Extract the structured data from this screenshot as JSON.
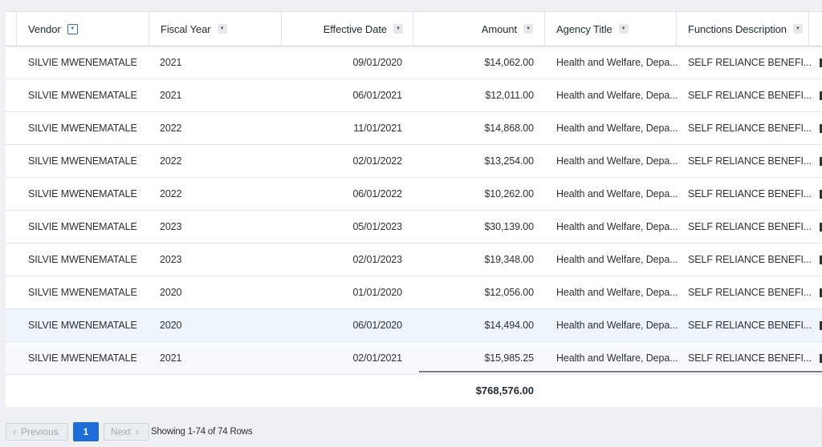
{
  "columns": [
    {
      "label": "Vendor",
      "sort": "chevron-down-icon"
    },
    {
      "label": "Fiscal Year",
      "sort": "chevron-down-icon"
    },
    {
      "label": "Effective Date",
      "sort": "chevron-down-icon"
    },
    {
      "label": "Amount",
      "sort": "chevron-down-icon"
    },
    {
      "label": "Agency Title",
      "sort": "chevron-down-icon"
    },
    {
      "label": "Functions Description",
      "sort": "chevron-down-icon"
    }
  ],
  "rows": [
    {
      "vendor": "SILVIE MWENEMATALE",
      "year": "2021",
      "date": "09/01/2020",
      "amount": "$14,062.00",
      "agency": "Health and Welfare, Depa...",
      "func": "SELF RELIANCE BENEFI..."
    },
    {
      "vendor": "SILVIE MWENEMATALE",
      "year": "2021",
      "date": "06/01/2021",
      "amount": "$12,011.00",
      "agency": "Health and Welfare, Depa...",
      "func": "SELF RELIANCE BENEFI..."
    },
    {
      "vendor": "SILVIE MWENEMATALE",
      "year": "2022",
      "date": "11/01/2021",
      "amount": "$14,868.00",
      "agency": "Health and Welfare, Depa...",
      "func": "SELF RELIANCE BENEFI..."
    },
    {
      "vendor": "SILVIE MWENEMATALE",
      "year": "2022",
      "date": "02/01/2022",
      "amount": "$13,254.00",
      "agency": "Health and Welfare, Depa...",
      "func": "SELF RELIANCE BENEFI..."
    },
    {
      "vendor": "SILVIE MWENEMATALE",
      "year": "2022",
      "date": "06/01/2022",
      "amount": "$10,262.00",
      "agency": "Health and Welfare, Depa...",
      "func": "SELF RELIANCE BENEFI..."
    },
    {
      "vendor": "SILVIE MWENEMATALE",
      "year": "2023",
      "date": "05/01/2023",
      "amount": "$30,139.00",
      "agency": "Health and Welfare, Depa...",
      "func": "SELF RELIANCE BENEFI..."
    },
    {
      "vendor": "SILVIE MWENEMATALE",
      "year": "2023",
      "date": "02/01/2023",
      "amount": "$19,348.00",
      "agency": "Health and Welfare, Depa...",
      "func": "SELF RELIANCE BENEFI..."
    },
    {
      "vendor": "SILVIE MWENEMATALE",
      "year": "2020",
      "date": "01/01/2020",
      "amount": "$12,056.00",
      "agency": "Health and Welfare, Depa...",
      "func": "SELF RELIANCE BENEFI..."
    },
    {
      "vendor": "SILVIE MWENEMATALE",
      "year": "2020",
      "date": "06/01/2020",
      "amount": "$14,494.00",
      "agency": "Health and Welfare, Depa...",
      "func": "SELF RELIANCE BENEFI..."
    },
    {
      "vendor": "SILVIE MWENEMATALE",
      "year": "2021",
      "date": "02/01/2021",
      "amount": "$15,985.25",
      "agency": "Health and Welfare, Depa...",
      "func": "SELF RELIANCE BENEFI..."
    }
  ],
  "total": "$768,576.00",
  "pager": {
    "previous": "Previous",
    "previous_icon": "chevron-left-icon",
    "page": "1",
    "next": "Next",
    "next_icon": "chevron-right-icon",
    "info": "Showing 1-74 of 74 Rows"
  },
  "colors": {
    "accent": "#1d6ed8",
    "hover_row": "#eef5fd"
  }
}
